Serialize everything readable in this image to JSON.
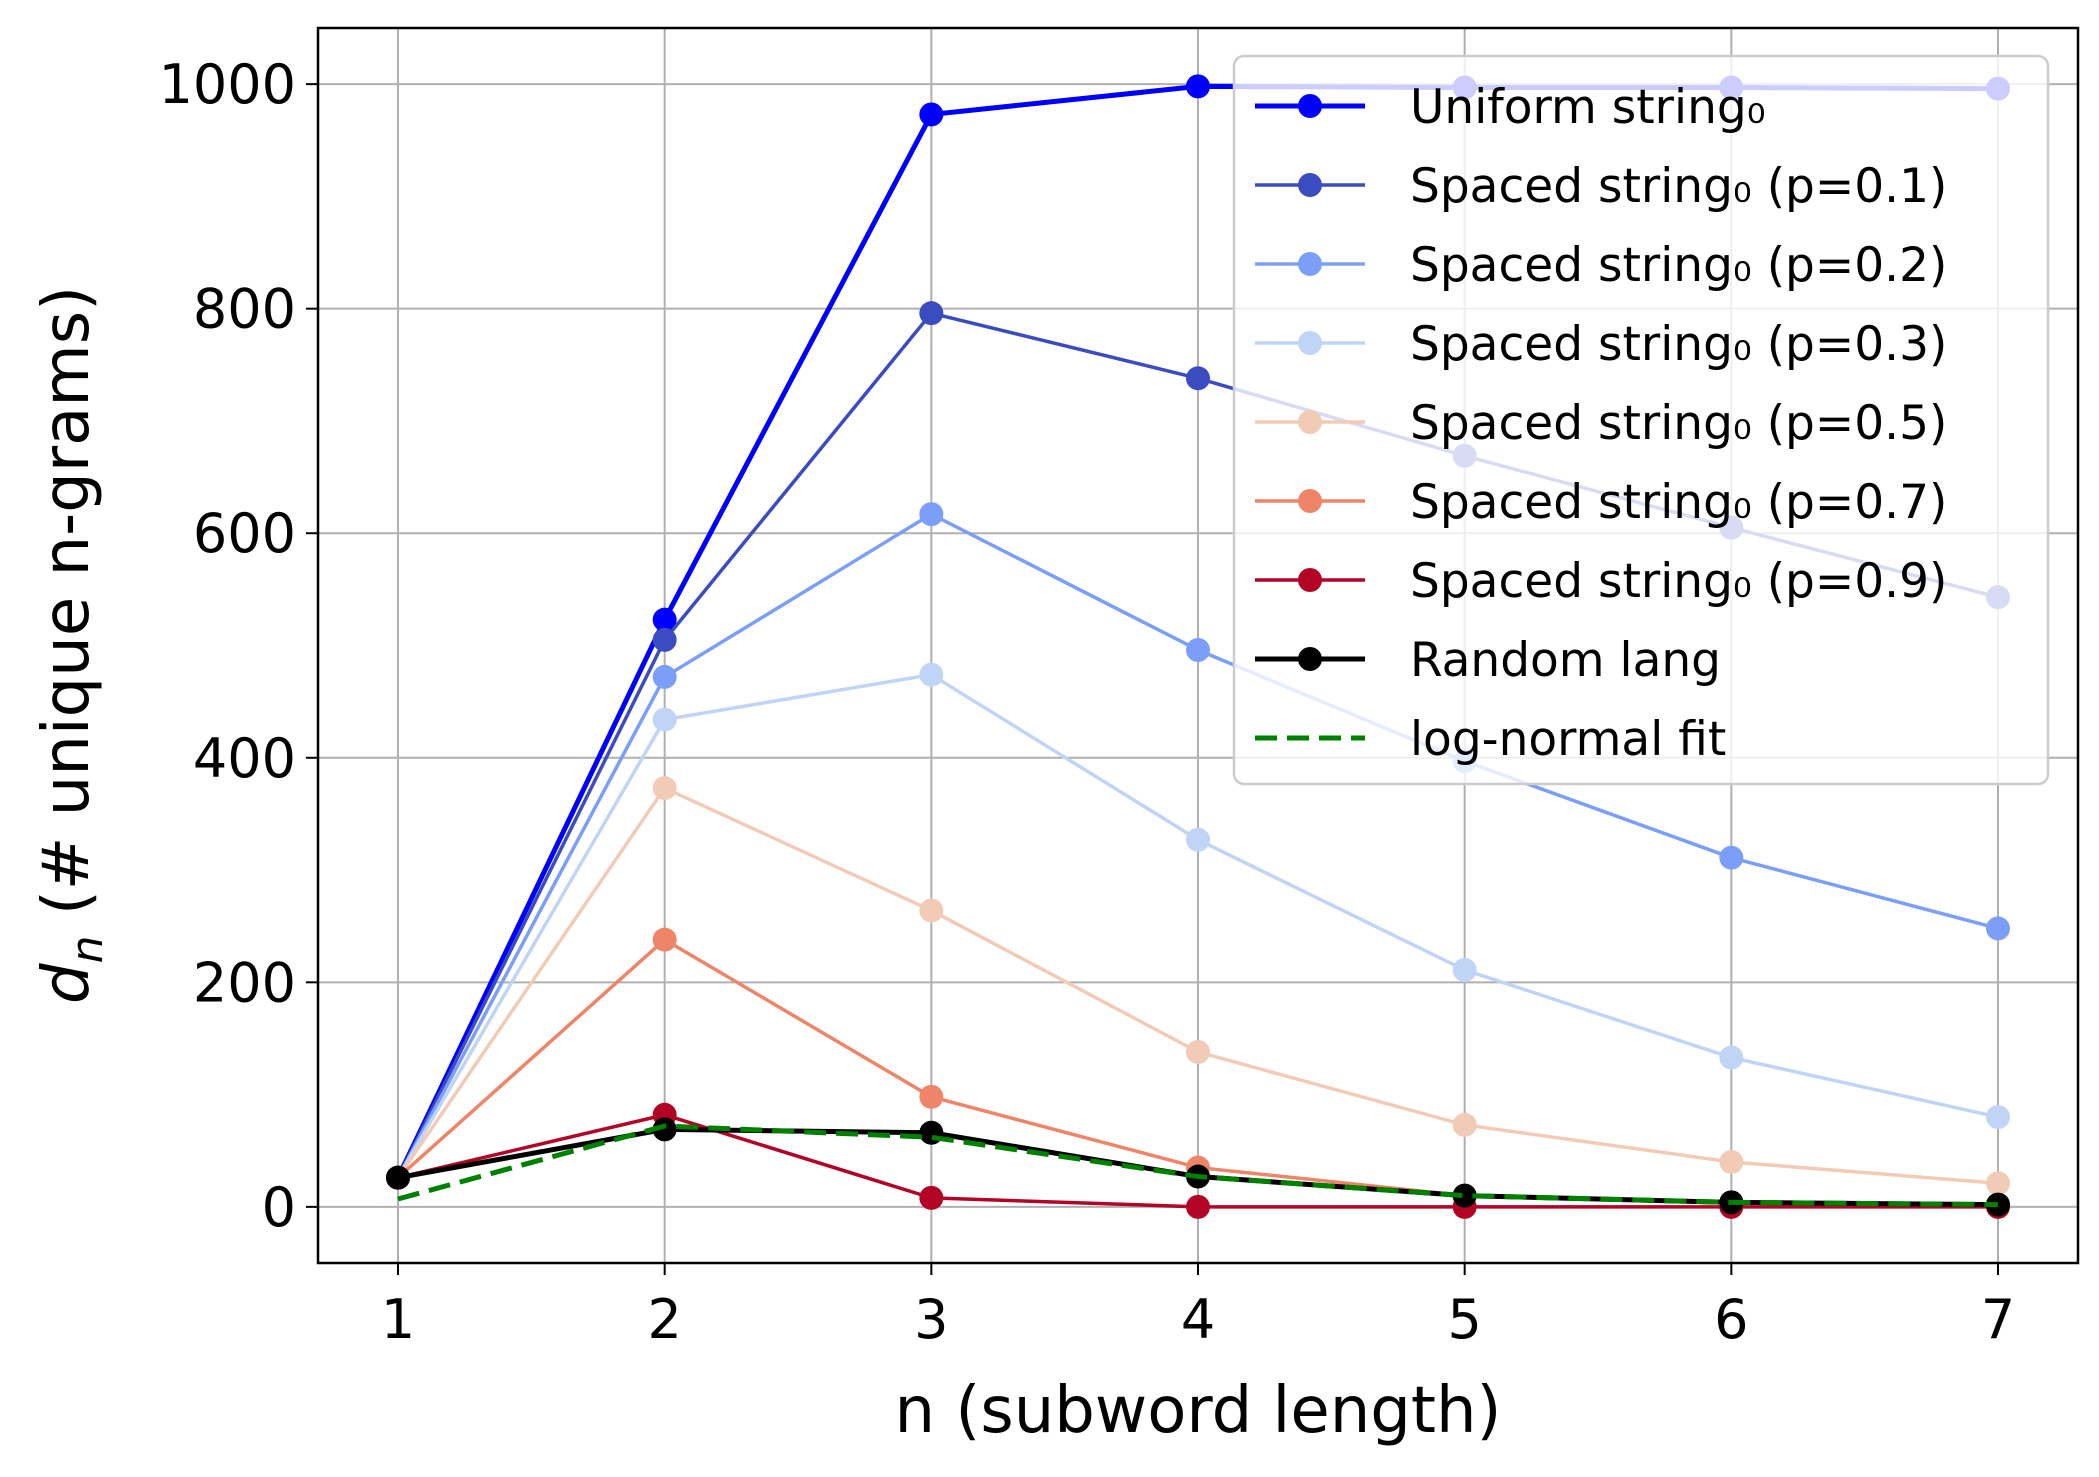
{
  "chart_data": {
    "type": "line",
    "xlabel": "n (subword length)",
    "ylabel": {
      "symbol": "d",
      "subscript": "n",
      "text": " (# unique n-grams)"
    },
    "x": [
      1,
      2,
      3,
      4,
      5,
      6,
      7
    ],
    "xlim": [
      0.7,
      7.3
    ],
    "ylim": [
      -50,
      1050
    ],
    "x_ticks": [
      "1",
      "2",
      "3",
      "4",
      "5",
      "6",
      "7"
    ],
    "y_ticks": [
      0,
      200,
      400,
      600,
      800,
      1000
    ],
    "y_tick_labels": [
      "0",
      "200",
      "400",
      "600",
      "800",
      "1000"
    ],
    "grid": true,
    "legend_position": "top-right",
    "series": [
      {
        "name": "Uniform string₀",
        "color": "#0000ff",
        "line_style": "solid",
        "marker": "circle",
        "values": [
          26,
          523,
          973,
          998,
          997,
          997,
          996
        ]
      },
      {
        "name": "Spaced string₀ (p=0.1)",
        "color": "#3b4cc0",
        "line_style": "solid",
        "marker": "circle",
        "values": [
          26,
          505,
          796,
          738,
          669,
          605,
          543
        ]
      },
      {
        "name": "Spaced string₀ (p=0.2)",
        "color": "#7b9ff9",
        "line_style": "solid",
        "marker": "circle",
        "values": [
          26,
          472,
          617,
          496,
          397,
          311,
          248
        ]
      },
      {
        "name": "Spaced string₀ (p=0.3)",
        "color": "#c0d4f5",
        "line_style": "solid",
        "marker": "circle",
        "values": [
          26,
          434,
          474,
          327,
          211,
          133,
          80
        ]
      },
      {
        "name": "Spaced string₀ (p=0.5)",
        "color": "#f2cbb7",
        "line_style": "solid",
        "marker": "circle",
        "values": [
          26,
          373,
          264,
          138,
          73,
          40,
          21
        ]
      },
      {
        "name": "Spaced string₀ (p=0.7)",
        "color": "#ee8468",
        "line_style": "solid",
        "marker": "circle",
        "values": [
          26,
          238,
          98,
          35,
          10,
          4,
          2
        ]
      },
      {
        "name": "Spaced string₀ (p=0.9)",
        "color": "#b40426",
        "line_style": "solid",
        "marker": "circle",
        "values": [
          26,
          82,
          8,
          0,
          0,
          0,
          0
        ]
      },
      {
        "name": "Random lang",
        "color": "#000000",
        "line_style": "solid",
        "marker": "circle",
        "values": [
          26,
          69,
          66,
          27,
          10,
          4,
          2
        ]
      },
      {
        "name": "log-normal fit",
        "color": "#008000",
        "line_style": "dashed",
        "marker": "none",
        "values": [
          7,
          72,
          62,
          27,
          10,
          4,
          2
        ]
      }
    ]
  }
}
